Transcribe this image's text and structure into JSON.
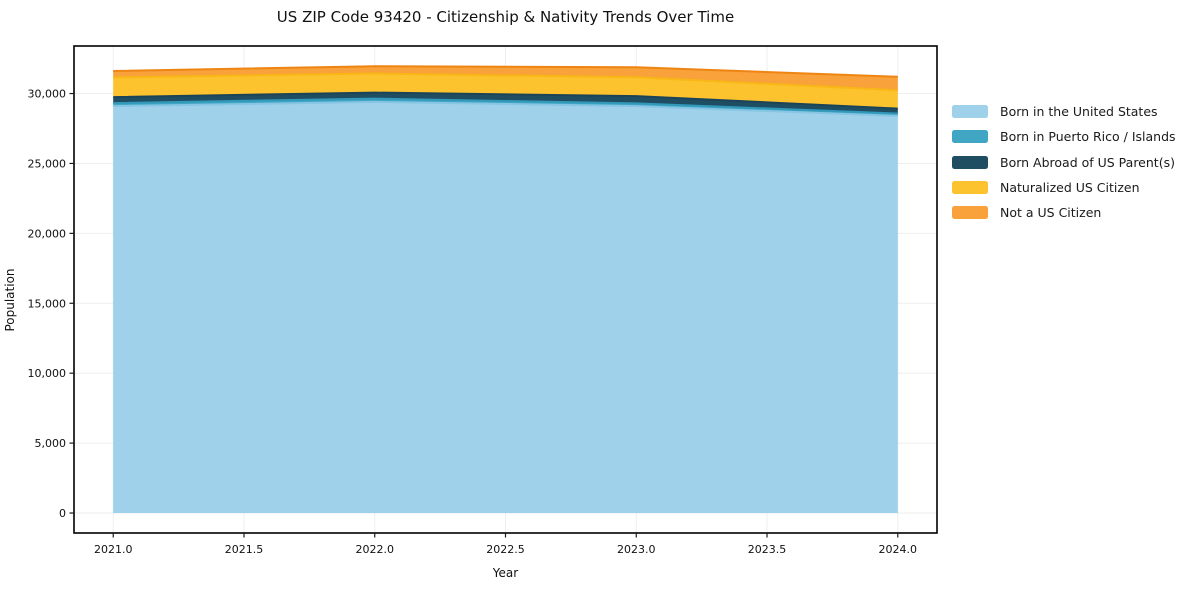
{
  "chart": {
    "title": "US ZIP Code 93420 - Citizenship & Nativity Trends Over Time",
    "xlabel": "Year",
    "ylabel": "Population"
  },
  "chart_data": {
    "type": "area",
    "stacked": true,
    "title": "US ZIP Code 93420 - Citizenship & Nativity Trends Over Time",
    "xlabel": "Year",
    "ylabel": "Population",
    "x": [
      2021,
      2022,
      2023,
      2024
    ],
    "series": [
      {
        "name": "Born in the United States",
        "values": [
          29100,
          29400,
          29100,
          28400
        ],
        "fill": "#9FD1EA",
        "edge": "#86C5E3"
      },
      {
        "name": "Born in Puerto Rico / Islands",
        "values": [
          215,
          235,
          195,
          165
        ],
        "fill": "#41A6C3",
        "edge": "#3399BB"
      },
      {
        "name": "Born Abroad of US Parent(s)",
        "values": [
          430,
          430,
          525,
          360
        ],
        "fill": "#1F4E63",
        "edge": "#1B4458"
      },
      {
        "name": "Naturalized US Citizen",
        "values": [
          1410,
          1365,
          1340,
          1310
        ],
        "fill": "#FCC32F",
        "edge": "#F8B716"
      },
      {
        "name": "Not a US Citizen",
        "values": [
          460,
          525,
          720,
          960
        ],
        "fill": "#F9A13A",
        "edge": "#EE8512"
      }
    ],
    "totals": [
      31615,
      31955,
      31880,
      31195
    ],
    "xlim": [
      2020.85,
      2024.15
    ],
    "ylim": [
      -1430,
      33400
    ],
    "xticks": {
      "values": [
        2021.0,
        2021.5,
        2022.0,
        2022.5,
        2023.0,
        2023.5,
        2024.0
      ],
      "labels": [
        "2021.0",
        "2021.5",
        "2022.0",
        "2022.5",
        "2023.0",
        "2023.5",
        "2024.0"
      ]
    },
    "yticks": {
      "values": [
        0,
        5000,
        10000,
        15000,
        20000,
        25000,
        30000
      ],
      "labels": [
        "0",
        "5,000",
        "10,000",
        "15,000",
        "20,000",
        "25,000",
        "30,000"
      ]
    },
    "grid": true,
    "legend_position": "right-outside"
  }
}
